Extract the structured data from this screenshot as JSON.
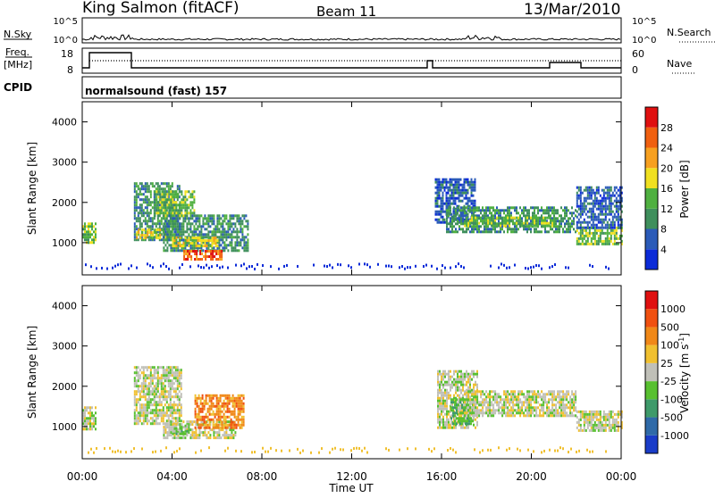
{
  "header": {
    "station": "King Salmon (fitACF)",
    "beam": "Beam 11",
    "date": "13/Mar/2010"
  },
  "top_panels": {
    "nsky_label": "N.Sky",
    "nsearch_label": "N.Search",
    "freq_label_1": "Freq.",
    "freq_label_2": "[MHz]",
    "nave_label": "Nave",
    "cpid_label": "CPID",
    "cpid_value": "normalsound (fast) 157",
    "noise_left_ticks": [
      "10^5",
      "10^0"
    ],
    "noise_right_ticks": [
      "10^5",
      "10^0"
    ],
    "freq_left_ticks": [
      "18",
      "8"
    ],
    "freq_right_ticks": [
      "60",
      "0"
    ]
  },
  "chart_data": [
    {
      "type": "heatmap",
      "name": "power",
      "ylabel": "Slant Range [km]",
      "ylim": [
        200,
        4500
      ],
      "yticks": [
        "4000",
        "3000",
        "2000",
        "1000"
      ],
      "xlim": [
        0,
        24
      ],
      "colorbar_label": "Power [dB]",
      "colorbar_ticks": [
        "28",
        "24",
        "20",
        "16",
        "12",
        "8",
        "4"
      ],
      "colorbar_colors": [
        "#0b2bd8",
        "#2b5bb8",
        "#3f8f5c",
        "#4fb040",
        "#f0e020",
        "#f7a020",
        "#f06010",
        "#e01010"
      ],
      "echo_regions": [
        {
          "t0": 0.0,
          "t1": 0.6,
          "r0": 1000,
          "r1": 1500,
          "level": 3
        },
        {
          "t0": 2.3,
          "t1": 4.3,
          "r0": 1100,
          "r1": 2500,
          "level": 2
        },
        {
          "t0": 2.4,
          "t1": 3.8,
          "r0": 1150,
          "r1": 1350,
          "level": 4
        },
        {
          "t0": 3.2,
          "t1": 5.0,
          "r0": 1700,
          "r1": 2300,
          "level": 3
        },
        {
          "t0": 3.6,
          "t1": 7.4,
          "r0": 800,
          "r1": 1700,
          "level": 2
        },
        {
          "t0": 4.0,
          "t1": 6.0,
          "r0": 900,
          "r1": 1150,
          "level": 4
        },
        {
          "t0": 4.5,
          "t1": 6.2,
          "r0": 620,
          "r1": 820,
          "level": 6
        },
        {
          "t0": 15.7,
          "t1": 17.5,
          "r0": 1500,
          "r1": 2600,
          "level": 1
        },
        {
          "t0": 16.2,
          "t1": 22.0,
          "r0": 1300,
          "r1": 1900,
          "level": 2
        },
        {
          "t0": 17.0,
          "t1": 21.0,
          "r0": 1450,
          "r1": 1650,
          "level": 3
        },
        {
          "t0": 22.0,
          "t1": 24.0,
          "r0": 950,
          "r1": 1400,
          "level": 3
        },
        {
          "t0": 22.0,
          "t1": 24.0,
          "r0": 1400,
          "r1": 2400,
          "level": 1
        }
      ]
    },
    {
      "type": "heatmap",
      "name": "velocity",
      "ylabel": "Slant Range [km]",
      "ylim": [
        200,
        4500
      ],
      "yticks": [
        "4000",
        "3000",
        "2000",
        "1000"
      ],
      "xlabel": "Time UT",
      "xlim": [
        0,
        24
      ],
      "xticks": [
        "00:00",
        "04:00",
        "08:00",
        "12:00",
        "16:00",
        "20:00",
        "00:00"
      ],
      "colorbar_label": "Velocity [m s",
      "colorbar_label_sup": "-1",
      "colorbar_label_end": "]",
      "colorbar_ticks": [
        "1000",
        "500",
        "100",
        "25",
        "-25",
        "-100",
        "-500",
        "-1000"
      ],
      "colorbar_colors": [
        "#1a3cc8",
        "#2f6aa8",
        "#3e9a6a",
        "#58c030",
        "#c0c0b8",
        "#f0c030",
        "#f08818",
        "#f05010",
        "#e01010"
      ],
      "echo_regions": [
        {
          "t0": 0.0,
          "t1": 0.6,
          "r0": 950,
          "r1": 1500,
          "level": 4
        },
        {
          "t0": 2.3,
          "t1": 4.4,
          "r0": 1100,
          "r1": 2500,
          "level": 4
        },
        {
          "t0": 3.6,
          "t1": 6.8,
          "r0": 700,
          "r1": 1150,
          "level": 4
        },
        {
          "t0": 4.0,
          "t1": 4.7,
          "r0": 850,
          "r1": 1050,
          "level": 3
        },
        {
          "t0": 5.0,
          "t1": 7.2,
          "r0": 1000,
          "r1": 1800,
          "level": 6
        },
        {
          "t0": 15.8,
          "t1": 17.6,
          "r0": 1000,
          "r1": 2400,
          "level": 4
        },
        {
          "t0": 16.4,
          "t1": 17.4,
          "r0": 1100,
          "r1": 1700,
          "level": 3
        },
        {
          "t0": 17.0,
          "t1": 22.0,
          "r0": 1300,
          "r1": 1900,
          "level": 4
        },
        {
          "t0": 22.0,
          "t1": 24.0,
          "r0": 900,
          "r1": 1400,
          "level": 4
        }
      ]
    }
  ]
}
